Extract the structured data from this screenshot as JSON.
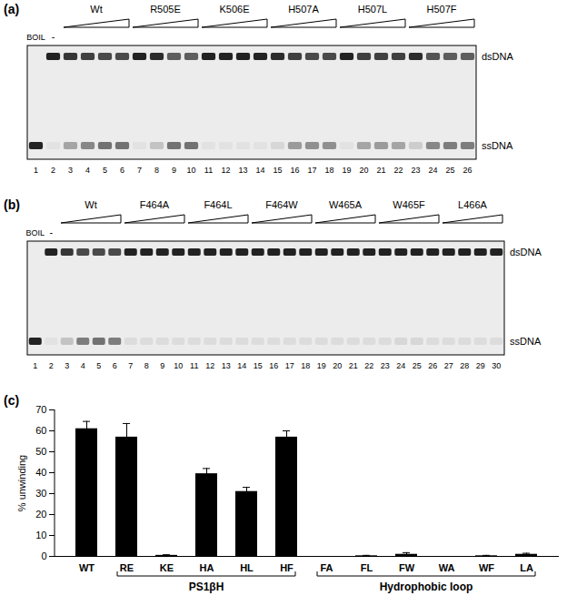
{
  "gels": [
    {
      "panel": "(a)",
      "lane_numbers": [
        1,
        2,
        3,
        4,
        5,
        6,
        7,
        8,
        9,
        10,
        11,
        12,
        13,
        14,
        15,
        16,
        17,
        18,
        19,
        20,
        21,
        22,
        23,
        24,
        25,
        26
      ],
      "groups": [
        {
          "label": "BOIL",
          "first": 1,
          "last": 1,
          "wedge": false
        },
        {
          "label": "-",
          "first": 2,
          "last": 2,
          "wedge": false
        },
        {
          "label": "Wt",
          "first": 3,
          "last": 6,
          "wedge": true
        },
        {
          "label": "R505E",
          "first": 7,
          "last": 10,
          "wedge": true
        },
        {
          "label": "K506E",
          "first": 11,
          "last": 14,
          "wedge": true
        },
        {
          "label": "H507A",
          "first": 15,
          "last": 18,
          "wedge": true
        },
        {
          "label": "H507L",
          "first": 19,
          "last": 22,
          "wedge": true
        },
        {
          "label": "H507F",
          "first": 23,
          "last": 26,
          "wedge": true
        }
      ],
      "band_labels": [
        "dsDNA",
        "ssDNA"
      ],
      "dsDNA": [
        0,
        1,
        0.9,
        0.85,
        0.8,
        0.8,
        1,
        0.95,
        0.7,
        0.7,
        1,
        1,
        1,
        1,
        0.95,
        0.85,
        0.8,
        0.8,
        1,
        0.85,
        0.85,
        0.85,
        0.95,
        0.75,
        0.7,
        0.7
      ],
      "ssDNA": [
        1,
        0.05,
        0.35,
        0.5,
        0.6,
        0.6,
        0.05,
        0.2,
        0.6,
        0.6,
        0.05,
        0.05,
        0.05,
        0.05,
        0.1,
        0.4,
        0.45,
        0.45,
        0.05,
        0.35,
        0.4,
        0.35,
        0.15,
        0.5,
        0.55,
        0.55
      ]
    },
    {
      "panel": "(b)",
      "lane_numbers": [
        1,
        2,
        3,
        4,
        5,
        6,
        7,
        8,
        9,
        10,
        11,
        12,
        13,
        14,
        15,
        16,
        17,
        18,
        19,
        20,
        21,
        22,
        23,
        24,
        25,
        26,
        27,
        28,
        29,
        30
      ],
      "groups": [
        {
          "label": "BOIL",
          "first": 1,
          "last": 1,
          "wedge": false
        },
        {
          "label": "-",
          "first": 2,
          "last": 2,
          "wedge": false
        },
        {
          "label": "Wt",
          "first": 3,
          "last": 6,
          "wedge": true
        },
        {
          "label": "F464A",
          "first": 7,
          "last": 10,
          "wedge": true
        },
        {
          "label": "F464L",
          "first": 11,
          "last": 14,
          "wedge": true
        },
        {
          "label": "F464W",
          "first": 15,
          "last": 18,
          "wedge": true
        },
        {
          "label": "W465A",
          "first": 19,
          "last": 22,
          "wedge": true
        },
        {
          "label": "W465F",
          "first": 23,
          "last": 26,
          "wedge": true
        },
        {
          "label": "L466A",
          "first": 27,
          "last": 30,
          "wedge": true
        }
      ],
      "band_labels": [
        "dsDNA",
        "ssDNA"
      ],
      "dsDNA": [
        0,
        1,
        0.9,
        0.8,
        0.8,
        0.8,
        1,
        1,
        1,
        1,
        1,
        1,
        1,
        1,
        1,
        1,
        1,
        1,
        1,
        1,
        1,
        1,
        1,
        1,
        1,
        1,
        1,
        1,
        1,
        1
      ],
      "ssDNA": [
        1,
        0.05,
        0.2,
        0.55,
        0.6,
        0.55,
        0.08,
        0.08,
        0.08,
        0.08,
        0.08,
        0.08,
        0.08,
        0.08,
        0.08,
        0.08,
        0.08,
        0.08,
        0.08,
        0.08,
        0.08,
        0.08,
        0.08,
        0.1,
        0.1,
        0.08,
        0.08,
        0.08,
        0.08,
        0.08
      ]
    }
  ],
  "chart_data": {
    "type": "bar",
    "panel": "(c)",
    "categories": [
      "WT",
      "RE",
      "KE",
      "HA",
      "HL",
      "HF",
      "FA",
      "FL",
      "FW",
      "WA",
      "WF",
      "LA"
    ],
    "values": [
      61,
      57,
      0.5,
      39.5,
      31,
      57,
      0,
      0.3,
      1,
      0,
      0.3,
      1
    ],
    "errors": [
      3.5,
      6.5,
      0.3,
      2.5,
      2,
      3,
      0,
      0.2,
      0.8,
      0,
      0.2,
      0.5
    ],
    "color": "#000000",
    "y_label": "% unwinding",
    "ylim": [
      0,
      70
    ],
    "yticks": [
      0,
      10,
      20,
      30,
      40,
      50,
      60,
      70
    ],
    "grid": false,
    "groups": [
      {
        "label": "PS1βH",
        "categories": [
          "RE",
          "KE",
          "HA",
          "HL",
          "HF"
        ]
      },
      {
        "label": "Hydrophobic loop",
        "categories": [
          "FA",
          "FL",
          "FW",
          "WA",
          "WF",
          "LA"
        ]
      }
    ]
  }
}
